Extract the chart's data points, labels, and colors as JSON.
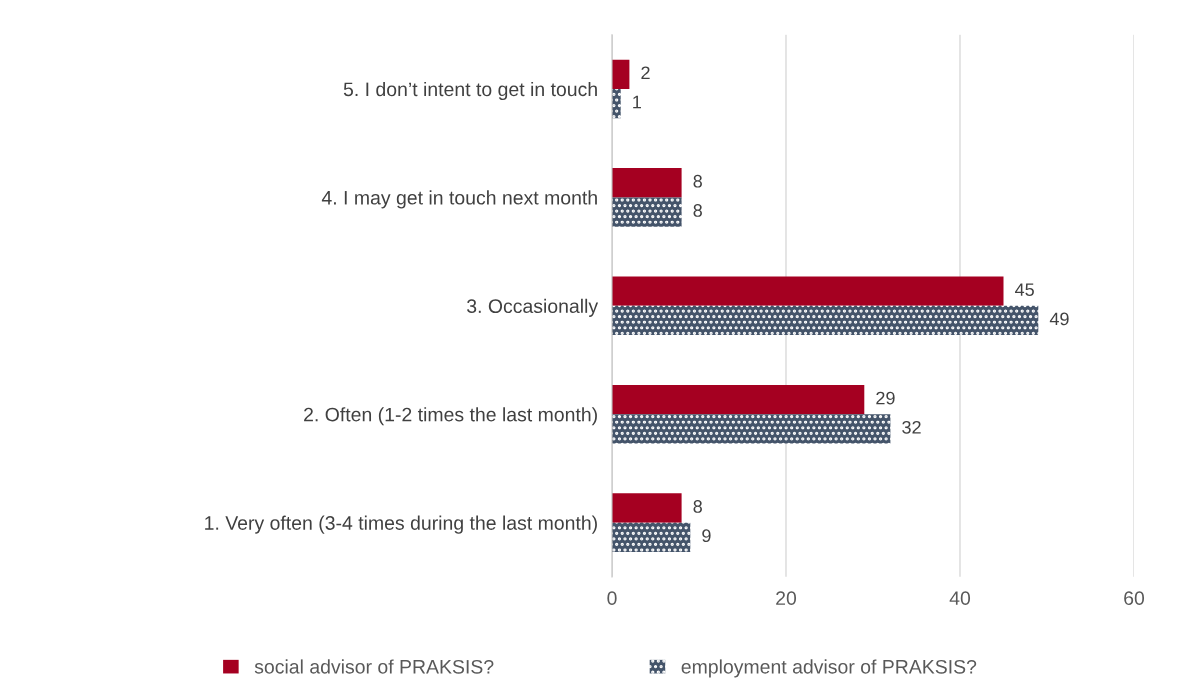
{
  "chart_data": {
    "type": "bar",
    "orientation": "horizontal",
    "categories": [
      "5. I don’t intent to get in touch",
      "4. I may get in touch next month",
      "3. Occasionally",
      "2. Often (1-2 times the last month)",
      "1. Very often (3-4 times during the last month)"
    ],
    "series": [
      {
        "name": "social advisor of PRAKSIS?",
        "color": "#a50021",
        "values": [
          2,
          8,
          45,
          29,
          8
        ]
      },
      {
        "name": "employment advisor of PRAKSIS?",
        "color": "#44546a",
        "values": [
          1,
          8,
          49,
          32,
          9
        ]
      }
    ],
    "xlim": [
      0,
      60
    ],
    "xticks": [
      0,
      20,
      40,
      60
    ],
    "grid": "x",
    "legend": "bottom",
    "data_labels": true
  }
}
